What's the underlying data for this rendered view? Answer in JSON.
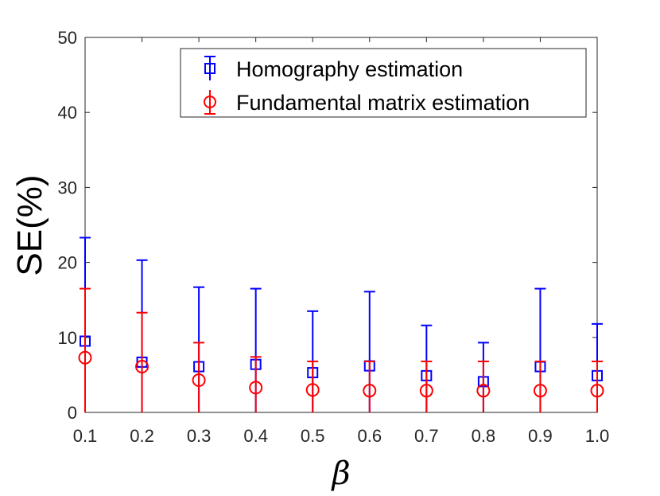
{
  "chart_data": {
    "type": "scatter",
    "title": "",
    "xlabel": "β",
    "ylabel": "SE(%)",
    "x": [
      0.1,
      0.2,
      0.3,
      0.4,
      0.5,
      0.6,
      0.7,
      0.8,
      0.9,
      1.0
    ],
    "x_tick_labels": [
      "0.1",
      "0.2",
      "0.3",
      "0.4",
      "0.5",
      "0.6",
      "0.7",
      "0.8",
      "0.9",
      "1.0"
    ],
    "y_ticks": [
      0,
      10,
      20,
      30,
      40,
      50
    ],
    "y_tick_labels": [
      "0",
      "10",
      "20",
      "30",
      "40",
      "50"
    ],
    "ylim": [
      0,
      50
    ],
    "grid": false,
    "legend_position": "top-right",
    "series": [
      {
        "name": "Homography estimation",
        "marker": "square",
        "color": "#0000ff",
        "values": [
          9.5,
          6.7,
          6.1,
          6.4,
          5.3,
          6.2,
          4.9,
          4.1,
          6.1,
          4.9
        ],
        "err_low": [
          0,
          0,
          0,
          0,
          0,
          0,
          0,
          0,
          0,
          0
        ],
        "err_high": [
          23.3,
          20.3,
          16.7,
          16.5,
          13.5,
          16.1,
          11.6,
          9.3,
          16.5,
          11.8
        ]
      },
      {
        "name": "Fundamental matrix estimation",
        "marker": "circle",
        "color": "#ff0000",
        "values": [
          7.3,
          6.1,
          4.3,
          3.3,
          3.0,
          2.9,
          2.9,
          2.9,
          2.9,
          2.9
        ],
        "err_low": [
          0,
          0,
          0,
          0,
          0,
          0,
          0,
          0,
          0,
          0
        ],
        "err_high": [
          16.5,
          13.3,
          9.3,
          7.4,
          6.8,
          6.8,
          6.8,
          6.8,
          6.8,
          6.8
        ]
      }
    ]
  }
}
